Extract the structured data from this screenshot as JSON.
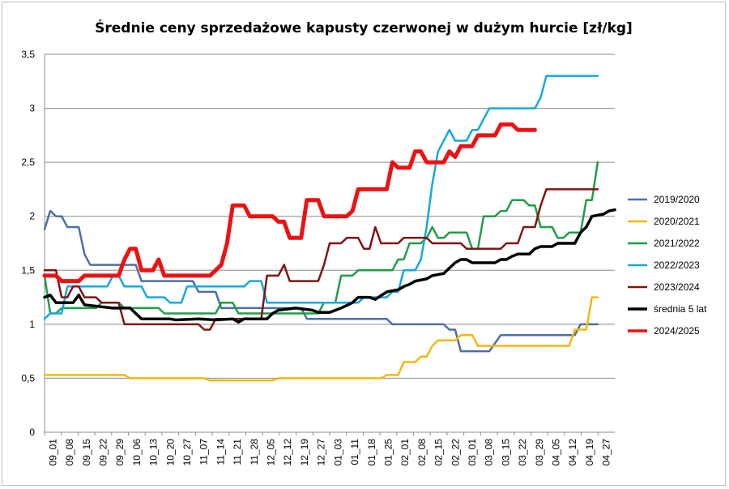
{
  "chart_data": {
    "type": "line",
    "title": "Średnie ceny sprzedażowe kapusty czerwonej w dużym hurcie [zł/kg]",
    "xlabel": "",
    "ylabel": "",
    "ylim": [
      0,
      3.5
    ],
    "yticks": [
      "0",
      "0,5",
      "1",
      "1,5",
      "2",
      "2,5",
      "3",
      "3,5"
    ],
    "grid": "horizontal",
    "legend_position": "right",
    "x_labels": [
      "09_01",
      "09_08",
      "09_15",
      "09_22",
      "09_29",
      "10_06",
      "10_13",
      "10_20",
      "10_27",
      "11_07",
      "11_14",
      "11_21",
      "11_28",
      "12_05",
      "12_12",
      "12_19",
      "12_27",
      "01_03",
      "01_11",
      "01_18",
      "01_25",
      "02_01",
      "02_08",
      "02_15",
      "02_22",
      "03_01",
      "03_08",
      "03_15",
      "03_22",
      "03_29",
      "04_05",
      "04_12",
      "04_19",
      "04_27"
    ],
    "series": [
      {
        "name": "2019/2020",
        "color": "#4f6fa3",
        "width": 2.5,
        "points": [
          [
            0,
            1.88
          ],
          [
            1,
            2.05
          ],
          [
            2,
            2.0
          ],
          [
            3,
            2.0
          ],
          [
            4,
            1.9
          ],
          [
            6,
            1.9
          ],
          [
            7,
            1.65
          ],
          [
            8,
            1.55
          ],
          [
            10,
            1.55
          ],
          [
            14,
            1.55
          ],
          [
            16,
            1.55
          ],
          [
            17,
            1.4
          ],
          [
            20,
            1.4
          ],
          [
            26,
            1.4
          ],
          [
            27,
            1.3
          ],
          [
            30,
            1.3
          ],
          [
            31,
            1.15
          ],
          [
            45,
            1.15
          ],
          [
            46,
            1.05
          ],
          [
            60,
            1.05
          ],
          [
            61,
            1.0
          ],
          [
            70,
            1.0
          ],
          [
            71,
            0.95
          ],
          [
            72,
            0.95
          ],
          [
            73,
            0.75
          ],
          [
            78,
            0.75
          ],
          [
            80,
            0.9
          ],
          [
            93,
            0.9
          ],
          [
            94,
            1.0
          ],
          [
            97,
            1.0
          ]
        ]
      },
      {
        "name": "2020/2021",
        "color": "#f2b90d",
        "width": 2.5,
        "points": [
          [
            0,
            0.53
          ],
          [
            14,
            0.53
          ],
          [
            15,
            0.5
          ],
          [
            28,
            0.5
          ],
          [
            29,
            0.48
          ],
          [
            40,
            0.48
          ],
          [
            41,
            0.5
          ],
          [
            59,
            0.5
          ],
          [
            60,
            0.53
          ],
          [
            62,
            0.53
          ],
          [
            63,
            0.65
          ],
          [
            65,
            0.65
          ],
          [
            66,
            0.7
          ],
          [
            67,
            0.7
          ],
          [
            68,
            0.8
          ],
          [
            69,
            0.85
          ],
          [
            72,
            0.85
          ],
          [
            73,
            0.9
          ],
          [
            75,
            0.9
          ],
          [
            76,
            0.8
          ],
          [
            92,
            0.8
          ],
          [
            93,
            0.95
          ],
          [
            95,
            0.95
          ],
          [
            96,
            1.25
          ],
          [
            97,
            1.25
          ]
        ]
      },
      {
        "name": "2021/2022",
        "color": "#1f9e47",
        "width": 2.5,
        "points": [
          [
            0,
            1.45
          ],
          [
            1,
            1.1
          ],
          [
            2,
            1.1
          ],
          [
            3,
            1.15
          ],
          [
            9,
            1.15
          ],
          [
            10,
            1.2
          ],
          [
            13,
            1.2
          ],
          [
            14,
            1.15
          ],
          [
            20,
            1.15
          ],
          [
            21,
            1.1
          ],
          [
            30,
            1.1
          ],
          [
            31,
            1.2
          ],
          [
            33,
            1.2
          ],
          [
            34,
            1.1
          ],
          [
            47,
            1.1
          ],
          [
            48,
            1.1
          ],
          [
            49,
            1.2
          ],
          [
            51,
            1.2
          ],
          [
            52,
            1.45
          ],
          [
            54,
            1.45
          ],
          [
            55,
            1.5
          ],
          [
            61,
            1.5
          ],
          [
            62,
            1.6
          ],
          [
            63,
            1.6
          ],
          [
            64,
            1.75
          ],
          [
            66,
            1.75
          ],
          [
            67,
            1.8
          ],
          [
            68,
            1.9
          ],
          [
            69,
            1.8
          ],
          [
            70,
            1.8
          ],
          [
            71,
            1.85
          ],
          [
            74,
            1.85
          ],
          [
            75,
            1.7
          ],
          [
            76,
            1.7
          ],
          [
            77,
            2.0
          ],
          [
            79,
            2.0
          ],
          [
            80,
            2.05
          ],
          [
            81,
            2.05
          ],
          [
            82,
            2.15
          ],
          [
            84,
            2.15
          ],
          [
            85,
            2.1
          ],
          [
            86,
            2.1
          ],
          [
            87,
            1.9
          ],
          [
            89,
            1.9
          ],
          [
            90,
            1.8
          ],
          [
            91,
            1.8
          ],
          [
            92,
            1.85
          ],
          [
            94,
            1.85
          ],
          [
            95,
            2.15
          ],
          [
            96,
            2.15
          ],
          [
            97,
            2.5
          ]
        ]
      },
      {
        "name": "2022/2023",
        "color": "#16a8e0",
        "width": 2.5,
        "points": [
          [
            0,
            1.05
          ],
          [
            1,
            1.1
          ],
          [
            3,
            1.1
          ],
          [
            4,
            1.35
          ],
          [
            11,
            1.35
          ],
          [
            12,
            1.45
          ],
          [
            13,
            1.45
          ],
          [
            14,
            1.35
          ],
          [
            17,
            1.35
          ],
          [
            18,
            1.25
          ],
          [
            21,
            1.25
          ],
          [
            22,
            1.2
          ],
          [
            24,
            1.2
          ],
          [
            25,
            1.35
          ],
          [
            35,
            1.35
          ],
          [
            36,
            1.4
          ],
          [
            38,
            1.4
          ],
          [
            39,
            1.2
          ],
          [
            55,
            1.2
          ],
          [
            56,
            1.25
          ],
          [
            60,
            1.25
          ],
          [
            61,
            1.3
          ],
          [
            62,
            1.3
          ],
          [
            63,
            1.5
          ],
          [
            65,
            1.5
          ],
          [
            66,
            1.6
          ],
          [
            67,
            1.9
          ],
          [
            68,
            2.3
          ],
          [
            69,
            2.6
          ],
          [
            70,
            2.7
          ],
          [
            71,
            2.8
          ],
          [
            72,
            2.7
          ],
          [
            74,
            2.7
          ],
          [
            75,
            2.8
          ],
          [
            76,
            2.8
          ],
          [
            77,
            2.9
          ],
          [
            78,
            3.0
          ],
          [
            86,
            3.0
          ],
          [
            87,
            3.1
          ],
          [
            88,
            3.3
          ],
          [
            97,
            3.3
          ]
        ]
      },
      {
        "name": "2023/2024",
        "color": "#7f1515",
        "width": 2.5,
        "points": [
          [
            0,
            1.5
          ],
          [
            2,
            1.5
          ],
          [
            3,
            1.25
          ],
          [
            4,
            1.25
          ],
          [
            5,
            1.35
          ],
          [
            6,
            1.35
          ],
          [
            7,
            1.25
          ],
          [
            9,
            1.25
          ],
          [
            10,
            1.2
          ],
          [
            13,
            1.2
          ],
          [
            14,
            1.0
          ],
          [
            27,
            1.0
          ],
          [
            28,
            0.95
          ],
          [
            29,
            0.95
          ],
          [
            30,
            1.05
          ],
          [
            38,
            1.05
          ],
          [
            39,
            1.45
          ],
          [
            41,
            1.45
          ],
          [
            42,
            1.55
          ],
          [
            43,
            1.4
          ],
          [
            48,
            1.4
          ],
          [
            49,
            1.55
          ],
          [
            50,
            1.75
          ],
          [
            52,
            1.75
          ],
          [
            53,
            1.8
          ],
          [
            55,
            1.8
          ],
          [
            56,
            1.7
          ],
          [
            57,
            1.7
          ],
          [
            58,
            1.9
          ],
          [
            59,
            1.75
          ],
          [
            62,
            1.75
          ],
          [
            63,
            1.8
          ],
          [
            67,
            1.8
          ],
          [
            68,
            1.75
          ],
          [
            73,
            1.75
          ],
          [
            74,
            1.7
          ],
          [
            80,
            1.7
          ],
          [
            81,
            1.75
          ],
          [
            83,
            1.75
          ],
          [
            84,
            1.9
          ],
          [
            86,
            1.9
          ],
          [
            87,
            2.1
          ],
          [
            88,
            2.25
          ],
          [
            97,
            2.25
          ]
        ]
      },
      {
        "name": "średnia 5 lat",
        "color": "#000000",
        "width": 3.5,
        "points": [
          [
            0,
            1.25
          ],
          [
            1,
            1.27
          ],
          [
            2,
            1.2
          ],
          [
            5,
            1.2
          ],
          [
            6,
            1.27
          ],
          [
            7,
            1.18
          ],
          [
            12,
            1.15
          ],
          [
            15,
            1.15
          ],
          [
            16,
            1.1
          ],
          [
            17,
            1.05
          ],
          [
            22,
            1.05
          ],
          [
            23,
            1.04
          ],
          [
            27,
            1.05
          ],
          [
            30,
            1.04
          ],
          [
            33,
            1.05
          ],
          [
            34,
            1.02
          ],
          [
            35,
            1.05
          ],
          [
            39,
            1.05
          ],
          [
            40,
            1.1
          ],
          [
            41,
            1.13
          ],
          [
            44,
            1.15
          ],
          [
            47,
            1.13
          ],
          [
            48,
            1.11
          ],
          [
            50,
            1.11
          ],
          [
            52,
            1.15
          ],
          [
            54,
            1.2
          ],
          [
            55,
            1.25
          ],
          [
            57,
            1.25
          ],
          [
            58,
            1.23
          ],
          [
            60,
            1.3
          ],
          [
            62,
            1.32
          ],
          [
            63,
            1.35
          ],
          [
            64,
            1.37
          ],
          [
            65,
            1.4
          ],
          [
            67,
            1.42
          ],
          [
            68,
            1.45
          ],
          [
            70,
            1.47
          ],
          [
            71,
            1.52
          ],
          [
            72,
            1.57
          ],
          [
            73,
            1.6
          ],
          [
            74,
            1.6
          ],
          [
            75,
            1.57
          ],
          [
            79,
            1.57
          ],
          [
            80,
            1.6
          ],
          [
            81,
            1.6
          ],
          [
            82,
            1.63
          ],
          [
            83,
            1.65
          ],
          [
            85,
            1.65
          ],
          [
            86,
            1.7
          ],
          [
            87,
            1.72
          ],
          [
            89,
            1.72
          ],
          [
            90,
            1.75
          ],
          [
            93,
            1.75
          ],
          [
            94,
            1.85
          ],
          [
            95,
            1.9
          ],
          [
            96,
            2.0
          ],
          [
            98,
            2.02
          ],
          [
            99,
            2.05
          ],
          [
            100,
            2.06
          ]
        ]
      },
      {
        "name": "2024/2025",
        "color": "#ee1111",
        "width": 5,
        "points": [
          [
            0,
            1.45
          ],
          [
            2,
            1.45
          ],
          [
            3,
            1.4
          ],
          [
            6,
            1.4
          ],
          [
            7,
            1.45
          ],
          [
            13,
            1.45
          ],
          [
            14,
            1.6
          ],
          [
            15,
            1.7
          ],
          [
            16,
            1.7
          ],
          [
            17,
            1.5
          ],
          [
            19,
            1.5
          ],
          [
            20,
            1.6
          ],
          [
            21,
            1.45
          ],
          [
            29,
            1.45
          ],
          [
            30,
            1.5
          ],
          [
            31,
            1.55
          ],
          [
            32,
            1.75
          ],
          [
            33,
            2.1
          ],
          [
            35,
            2.1
          ],
          [
            36,
            2.0
          ],
          [
            40,
            2.0
          ],
          [
            41,
            1.95
          ],
          [
            42,
            1.95
          ],
          [
            43,
            1.8
          ],
          [
            45,
            1.8
          ],
          [
            46,
            2.15
          ],
          [
            48,
            2.15
          ],
          [
            49,
            2.0
          ],
          [
            53,
            2.0
          ],
          [
            54,
            2.05
          ],
          [
            55,
            2.25
          ],
          [
            60,
            2.25
          ],
          [
            61,
            2.5
          ],
          [
            62,
            2.45
          ],
          [
            64,
            2.45
          ],
          [
            65,
            2.6
          ],
          [
            66,
            2.6
          ],
          [
            67,
            2.5
          ],
          [
            70,
            2.5
          ],
          [
            71,
            2.6
          ],
          [
            72,
            2.55
          ],
          [
            73,
            2.65
          ],
          [
            75,
            2.65
          ],
          [
            76,
            2.75
          ],
          [
            79,
            2.75
          ],
          [
            80,
            2.85
          ],
          [
            82,
            2.85
          ],
          [
            83,
            2.8
          ],
          [
            86,
            2.8
          ]
        ]
      }
    ]
  }
}
